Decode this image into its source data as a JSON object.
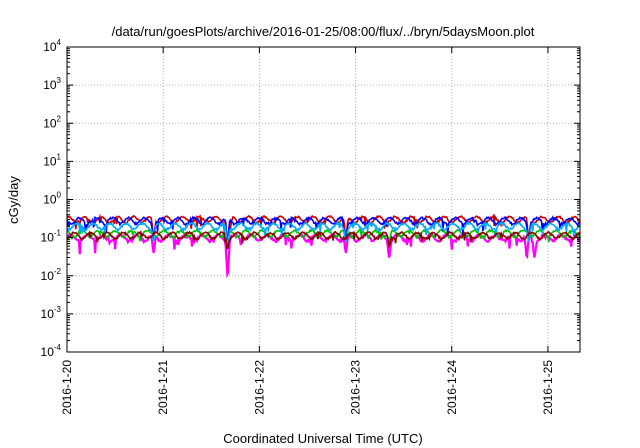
{
  "chart_data": {
    "type": "line",
    "title": "/data/run/goesPlots/archive/2016-01-25/08:00/flux/../bryn/5daysMoon.plot",
    "xlabel": "Coordinated Universal Time (UTC)",
    "ylabel": "cGy/day",
    "y_scale": "log",
    "ylim": [
      0.0001,
      10000
    ],
    "xlim": [
      "2016-01-20 00:00",
      "2016-01-25 08:00"
    ],
    "grid": true,
    "legend": "none",
    "x_tick_labels": [
      "2016-1-20",
      "2016-1-21",
      "2016-1-22",
      "2016-1-23",
      "2016-1-24",
      "2016-1-25"
    ],
    "y_tick_labels": [
      {
        "base": "10",
        "exp": "-4"
      },
      {
        "base": "10",
        "exp": "-3"
      },
      {
        "base": "10",
        "exp": "-2"
      },
      {
        "base": "10",
        "exp": "-1"
      },
      {
        "base": "10",
        "exp": "0"
      },
      {
        "base": "10",
        "exp": "1"
      },
      {
        "base": "10",
        "exp": "2"
      },
      {
        "base": "10",
        "exp": "3"
      },
      {
        "base": "10",
        "exp": "4"
      }
    ],
    "series": [
      {
        "color": "#ff00ff",
        "base": 0.1,
        "dip_strength": 0.55,
        "deep_dips": [
          [
            0.9,
            0.04
          ],
          [
            1.67,
            0.01
          ],
          [
            2.9,
            0.04
          ],
          [
            3.35,
            0.03
          ],
          [
            4.78,
            0.03
          ],
          [
            4.86,
            0.03
          ]
        ]
      },
      {
        "color": "#cc0000",
        "base": 0.3,
        "dip_strength": 0.5,
        "deep_dips": [
          [
            0.9,
            0.1
          ],
          [
            1.67,
            0.08
          ],
          [
            2.9,
            0.1
          ],
          [
            4.8,
            0.1
          ]
        ]
      },
      {
        "color": "#00c000",
        "base": 0.13,
        "dip_strength": 0.3,
        "deep_dips": [
          [
            1.67,
            0.07
          ],
          [
            3.35,
            0.08
          ]
        ]
      },
      {
        "color": "#0000ff",
        "base": 0.28,
        "dip_strength": 0.5,
        "deep_dips": [
          [
            0.9,
            0.09
          ],
          [
            1.67,
            0.07
          ],
          [
            2.9,
            0.09
          ],
          [
            4.8,
            0.09
          ]
        ]
      },
      {
        "color": "#00aaff",
        "base": 0.2,
        "dip_strength": 0.45,
        "deep_dips": [
          [
            0.9,
            0.08
          ],
          [
            1.67,
            0.06
          ],
          [
            2.9,
            0.08
          ],
          [
            4.8,
            0.08
          ]
        ]
      },
      {
        "color": "#8b0000",
        "base": 0.115,
        "dip_strength": 0.35,
        "deep_dips": [
          [
            1.67,
            0.05
          ],
          [
            3.35,
            0.06
          ]
        ]
      }
    ]
  }
}
